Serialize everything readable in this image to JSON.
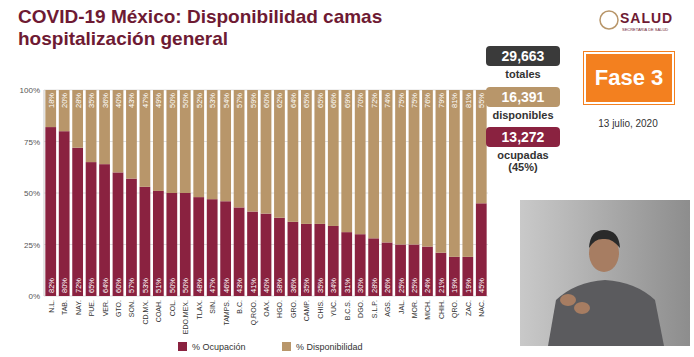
{
  "chart_data": {
    "type": "bar",
    "title": "COVID-19 México: Disponibilidad camas hospitalización general",
    "stacked": true,
    "data_labels": true,
    "grid": true,
    "legend": "bottom",
    "categories": [
      "N.L.",
      "TAB.",
      "NAY.",
      "PUE.",
      "VER.",
      "GTO.",
      "SON.",
      "CD.MX.",
      "COAH.",
      "COL.",
      "EDO.MEX.",
      "TLAX.",
      "SIN.",
      "TAMPS.",
      "B.C.",
      "Q.ROO.",
      "OAX.",
      "HGO.",
      "GRO.",
      "CAMP.",
      "CHIS.",
      "YUC.",
      "B.C.S.",
      "DGO.",
      "S.L.P.",
      "AGS.",
      "JAL.",
      "MOR.",
      "MICH.",
      "CHIH.",
      "QRO.",
      "ZAC.",
      "NAC."
    ],
    "series": [
      {
        "name": "% Ocupación",
        "color": "#8a2240",
        "values": [
          82,
          80,
          72,
          65,
          64,
          60,
          57,
          53,
          51,
          50,
          50,
          48,
          47,
          46,
          43,
          41,
          40,
          38,
          36,
          35,
          35,
          34,
          31,
          30,
          28,
          26,
          25,
          25,
          24,
          21,
          19,
          19,
          45
        ],
        "value_labels": [
          "82%",
          "80%",
          "72%",
          "65%",
          "64%",
          "60%",
          "57%",
          "53%",
          "51%",
          "50%",
          "50%",
          "48%",
          "47%",
          "46%",
          "43%",
          "41%",
          "40%",
          "38%",
          "36%",
          "35%",
          "35%",
          "34%",
          "31%",
          "30%",
          "28%",
          "26%",
          "25%",
          "25%",
          "24%",
          "21%",
          "19%",
          "19%",
          "45%"
        ]
      },
      {
        "name": "% Disponibilidad",
        "color": "#b8966a",
        "values": [
          18,
          20,
          28,
          35,
          36,
          40,
          43,
          47,
          49,
          50,
          50,
          52,
          53,
          54,
          57,
          59,
          60,
          62,
          64,
          65,
          65,
          66,
          69,
          70,
          72,
          74,
          75,
          75,
          76,
          79,
          81,
          81,
          55
        ],
        "value_labels": [
          "18%",
          "20%",
          "28%",
          "35%",
          "36%",
          "40%",
          "43%",
          "47%",
          "49%",
          "50%",
          "50%",
          "52%",
          "53%",
          "54%",
          "57%",
          "59%",
          "60%",
          "62%",
          "64%",
          "65%",
          "65%",
          "66%",
          "69%",
          "70%",
          "72%",
          "74%",
          "75%",
          "75%",
          "76%",
          "79%",
          "81%",
          "81%",
          "55%"
        ]
      }
    ],
    "ylim": [
      0,
      100
    ],
    "yticks": [
      {
        "value": 0,
        "label": "0%"
      },
      {
        "value": 25,
        "label": "25%"
      },
      {
        "value": 50,
        "label": "50%"
      },
      {
        "value": 75,
        "label": "75%"
      },
      {
        "value": 100,
        "label": "100%"
      }
    ]
  },
  "panel": {
    "totals": [
      {
        "value": "29,663",
        "label": "totales",
        "color": "#3a3a3a"
      },
      {
        "value": "16,391",
        "label": "disponibles",
        "color": "#b8966a"
      },
      {
        "value": "13,272",
        "label": "ocupadas (45%)",
        "color": "#8a2240"
      }
    ],
    "phase": "Fase 3",
    "date": "13 julio, 2020",
    "logo": "SALUD",
    "logo_sub": "SECRETARÍA DE SALUD"
  }
}
